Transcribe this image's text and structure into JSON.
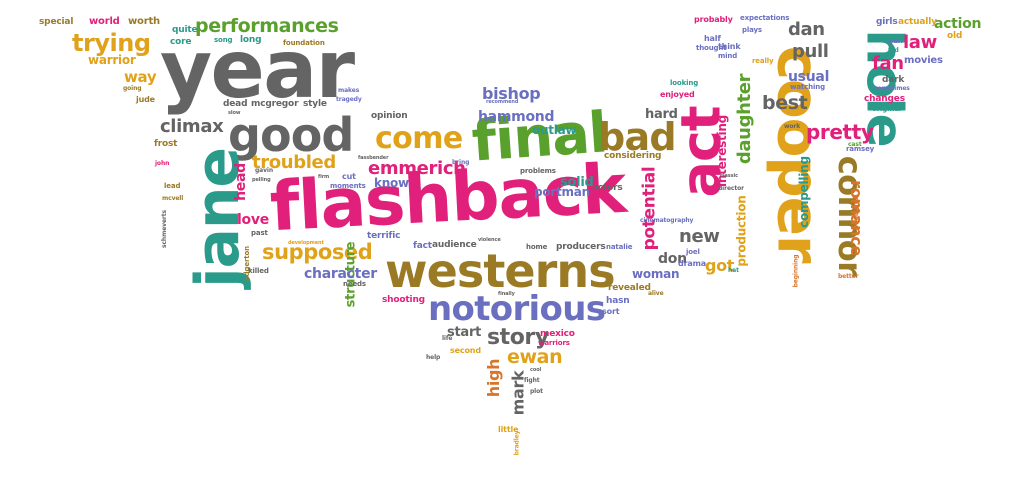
{
  "palette": {
    "green": "#5aa02c",
    "magenta": "#e0207a",
    "gray": "#646464",
    "gold": "#e0a21a",
    "purple": "#6a6fc0",
    "brown": "#9a7a24",
    "teal": "#2a9a8a",
    "orange": "#d7752a"
  },
  "words": [
    {
      "text": "flashback",
      "color": "magenta"
    },
    {
      "text": "westerns",
      "color": "brown"
    },
    {
      "text": "year",
      "color": "gray"
    },
    {
      "text": "good",
      "color": "gray"
    },
    {
      "text": "jane",
      "color": "teal"
    },
    {
      "text": "final",
      "color": "green"
    },
    {
      "text": "act",
      "color": "magenta"
    },
    {
      "text": "cooper",
      "color": "gold"
    },
    {
      "text": "hole",
      "color": "teal"
    },
    {
      "text": "notorious",
      "color": "purple"
    },
    {
      "text": "bad",
      "color": "brown"
    },
    {
      "text": "come",
      "color": "gold"
    },
    {
      "text": "connor",
      "color": "brown"
    },
    {
      "text": "trying",
      "color": "gold"
    },
    {
      "text": "performances",
      "color": "green"
    },
    {
      "text": "emmerich",
      "color": "magenta"
    },
    {
      "text": "supposed",
      "color": "gold"
    },
    {
      "text": "troubled",
      "color": "gold"
    },
    {
      "text": "story",
      "color": "gray"
    },
    {
      "text": "climax",
      "color": "gray"
    },
    {
      "text": "pretty",
      "color": "magenta"
    },
    {
      "text": "romance",
      "color": "orange"
    },
    {
      "text": "daughter",
      "color": "green"
    },
    {
      "text": "potential",
      "color": "magenta"
    },
    {
      "text": "interesting",
      "color": "magenta"
    },
    {
      "text": "production",
      "color": "gold"
    },
    {
      "text": "compelling",
      "color": "teal"
    },
    {
      "text": "structure",
      "color": "green"
    },
    {
      "text": "character",
      "color": "purple"
    },
    {
      "text": "bishop",
      "color": "purple"
    },
    {
      "text": "hammond",
      "color": "purple"
    },
    {
      "text": "high",
      "color": "orange"
    },
    {
      "text": "mark",
      "color": "gray"
    },
    {
      "text": "ewan",
      "color": "gold"
    },
    {
      "text": "new",
      "color": "gray"
    },
    {
      "text": "dan",
      "color": "gray"
    },
    {
      "text": "pull",
      "color": "gray"
    },
    {
      "text": "law",
      "color": "magenta"
    },
    {
      "text": "fan",
      "color": "magenta"
    },
    {
      "text": "best",
      "color": "gray"
    },
    {
      "text": "usual",
      "color": "purple"
    },
    {
      "text": "got",
      "color": "gold"
    },
    {
      "text": "don",
      "color": "gray"
    },
    {
      "text": "woman",
      "color": "purple"
    },
    {
      "text": "warrior",
      "color": "gold"
    },
    {
      "text": "way",
      "color": "gold"
    },
    {
      "text": "head",
      "color": "magenta"
    },
    {
      "text": "love",
      "color": "magenta"
    },
    {
      "text": "know",
      "color": "purple"
    },
    {
      "text": "start",
      "color": "gray"
    },
    {
      "text": "action",
      "color": "green"
    },
    {
      "text": "hard",
      "color": "gray"
    },
    {
      "text": "solid",
      "color": "teal"
    },
    {
      "text": "portman",
      "color": "purple"
    },
    {
      "text": "outlaw",
      "color": "teal"
    },
    {
      "text": "considering",
      "color": "brown"
    },
    {
      "text": "special",
      "color": "brown"
    },
    {
      "text": "world",
      "color": "magenta"
    },
    {
      "text": "worth",
      "color": "brown"
    },
    {
      "text": "quite",
      "color": "teal"
    },
    {
      "text": "core",
      "color": "teal"
    },
    {
      "text": "song",
      "color": "teal"
    },
    {
      "text": "long",
      "color": "teal"
    },
    {
      "text": "foundation",
      "color": "brown"
    },
    {
      "text": "movies",
      "color": "purple"
    },
    {
      "text": "girls",
      "color": "purple"
    },
    {
      "text": "actually",
      "color": "gold"
    },
    {
      "text": "old",
      "color": "gold"
    },
    {
      "text": "probably",
      "color": "magenta"
    },
    {
      "text": "expectations",
      "color": "purple"
    },
    {
      "text": "plays",
      "color": "purple"
    },
    {
      "text": "half",
      "color": "purple"
    },
    {
      "text": "thought",
      "color": "purple"
    },
    {
      "text": "think",
      "color": "purple"
    },
    {
      "text": "mind",
      "color": "purple"
    },
    {
      "text": "really",
      "color": "gold"
    },
    {
      "text": "looking",
      "color": "teal"
    },
    {
      "text": "enjoyed",
      "color": "magenta"
    },
    {
      "text": "watching",
      "color": "purple"
    },
    {
      "text": "changes",
      "color": "magenta"
    },
    {
      "text": "dark",
      "color": "gray"
    },
    {
      "text": "sometimes",
      "color": "purple"
    },
    {
      "text": "fed",
      "color": "teal"
    },
    {
      "text": "gun",
      "color": "purple"
    },
    {
      "text": "cast",
      "color": "green"
    },
    {
      "text": "ramsey",
      "color": "purple"
    },
    {
      "text": "original",
      "color": "teal"
    },
    {
      "text": "husband",
      "color": "orange"
    },
    {
      "text": "better",
      "color": "orange"
    },
    {
      "text": "work",
      "color": "gray"
    },
    {
      "text": "jude",
      "color": "brown"
    },
    {
      "text": "going",
      "color": "brown"
    },
    {
      "text": "frost",
      "color": "brown"
    },
    {
      "text": "john",
      "color": "magenta"
    },
    {
      "text": "lead",
      "color": "brown"
    },
    {
      "text": "mcvell",
      "color": "brown"
    },
    {
      "text": "edgerton",
      "color": "brown"
    },
    {
      "text": "killed",
      "color": "gray"
    },
    {
      "text": "gavin",
      "color": "gray"
    },
    {
      "text": "pelling",
      "color": "gray"
    },
    {
      "text": "dead",
      "color": "gray"
    },
    {
      "text": "mcgregor",
      "color": "gray"
    },
    {
      "text": "style",
      "color": "gray"
    },
    {
      "text": "slow",
      "color": "gray"
    },
    {
      "text": "makes",
      "color": "purple"
    },
    {
      "text": "tragedy",
      "color": "purple"
    },
    {
      "text": "opinion",
      "color": "gray"
    },
    {
      "text": "cut",
      "color": "purple"
    },
    {
      "text": "moments",
      "color": "purple"
    },
    {
      "text": "past",
      "color": "gray"
    },
    {
      "text": "development",
      "color": "gold"
    },
    {
      "text": "terrific",
      "color": "purple"
    },
    {
      "text": "fact",
      "color": "purple"
    },
    {
      "text": "audience",
      "color": "gray"
    },
    {
      "text": "violence",
      "color": "gray"
    },
    {
      "text": "home",
      "color": "gray"
    },
    {
      "text": "producers",
      "color": "gray"
    },
    {
      "text": "actors",
      "color": "gray"
    },
    {
      "text": "problems",
      "color": "gray"
    },
    {
      "text": "natalie",
      "color": "purple"
    },
    {
      "text": "joel",
      "color": "purple"
    },
    {
      "text": "drama",
      "color": "purple"
    },
    {
      "text": "revealed",
      "color": "brown"
    },
    {
      "text": "hasn",
      "color": "purple"
    },
    {
      "text": "sort",
      "color": "purple"
    },
    {
      "text": "finally",
      "color": "gray"
    },
    {
      "text": "shooting",
      "color": "magenta"
    },
    {
      "text": "needs",
      "color": "gray"
    },
    {
      "text": "mexico",
      "color": "magenta"
    },
    {
      "text": "warriors",
      "color": "magenta"
    },
    {
      "text": "second",
      "color": "gold"
    },
    {
      "text": "life",
      "color": "gray"
    },
    {
      "text": "help",
      "color": "gray"
    },
    {
      "text": "little",
      "color": "gold"
    },
    {
      "text": "fight",
      "color": "gray"
    },
    {
      "text": "plot",
      "color": "gray"
    },
    {
      "text": "bradley",
      "color": "gold"
    },
    {
      "text": "cinematography",
      "color": "purple"
    },
    {
      "text": "director",
      "color": "gray"
    },
    {
      "text": "classic",
      "color": "gray"
    },
    {
      "text": "alive",
      "color": "brown"
    },
    {
      "text": "recommend",
      "color": "purple"
    },
    {
      "text": "fassbender",
      "color": "gray"
    },
    {
      "text": "firm",
      "color": "gray"
    },
    {
      "text": "bring",
      "color": "purple"
    },
    {
      "text": "hat",
      "color": "teal"
    },
    {
      "text": "beginning",
      "color": "orange"
    },
    {
      "text": "cool",
      "color": "gray"
    },
    {
      "text": "schmeverts",
      "color": "gray"
    }
  ]
}
